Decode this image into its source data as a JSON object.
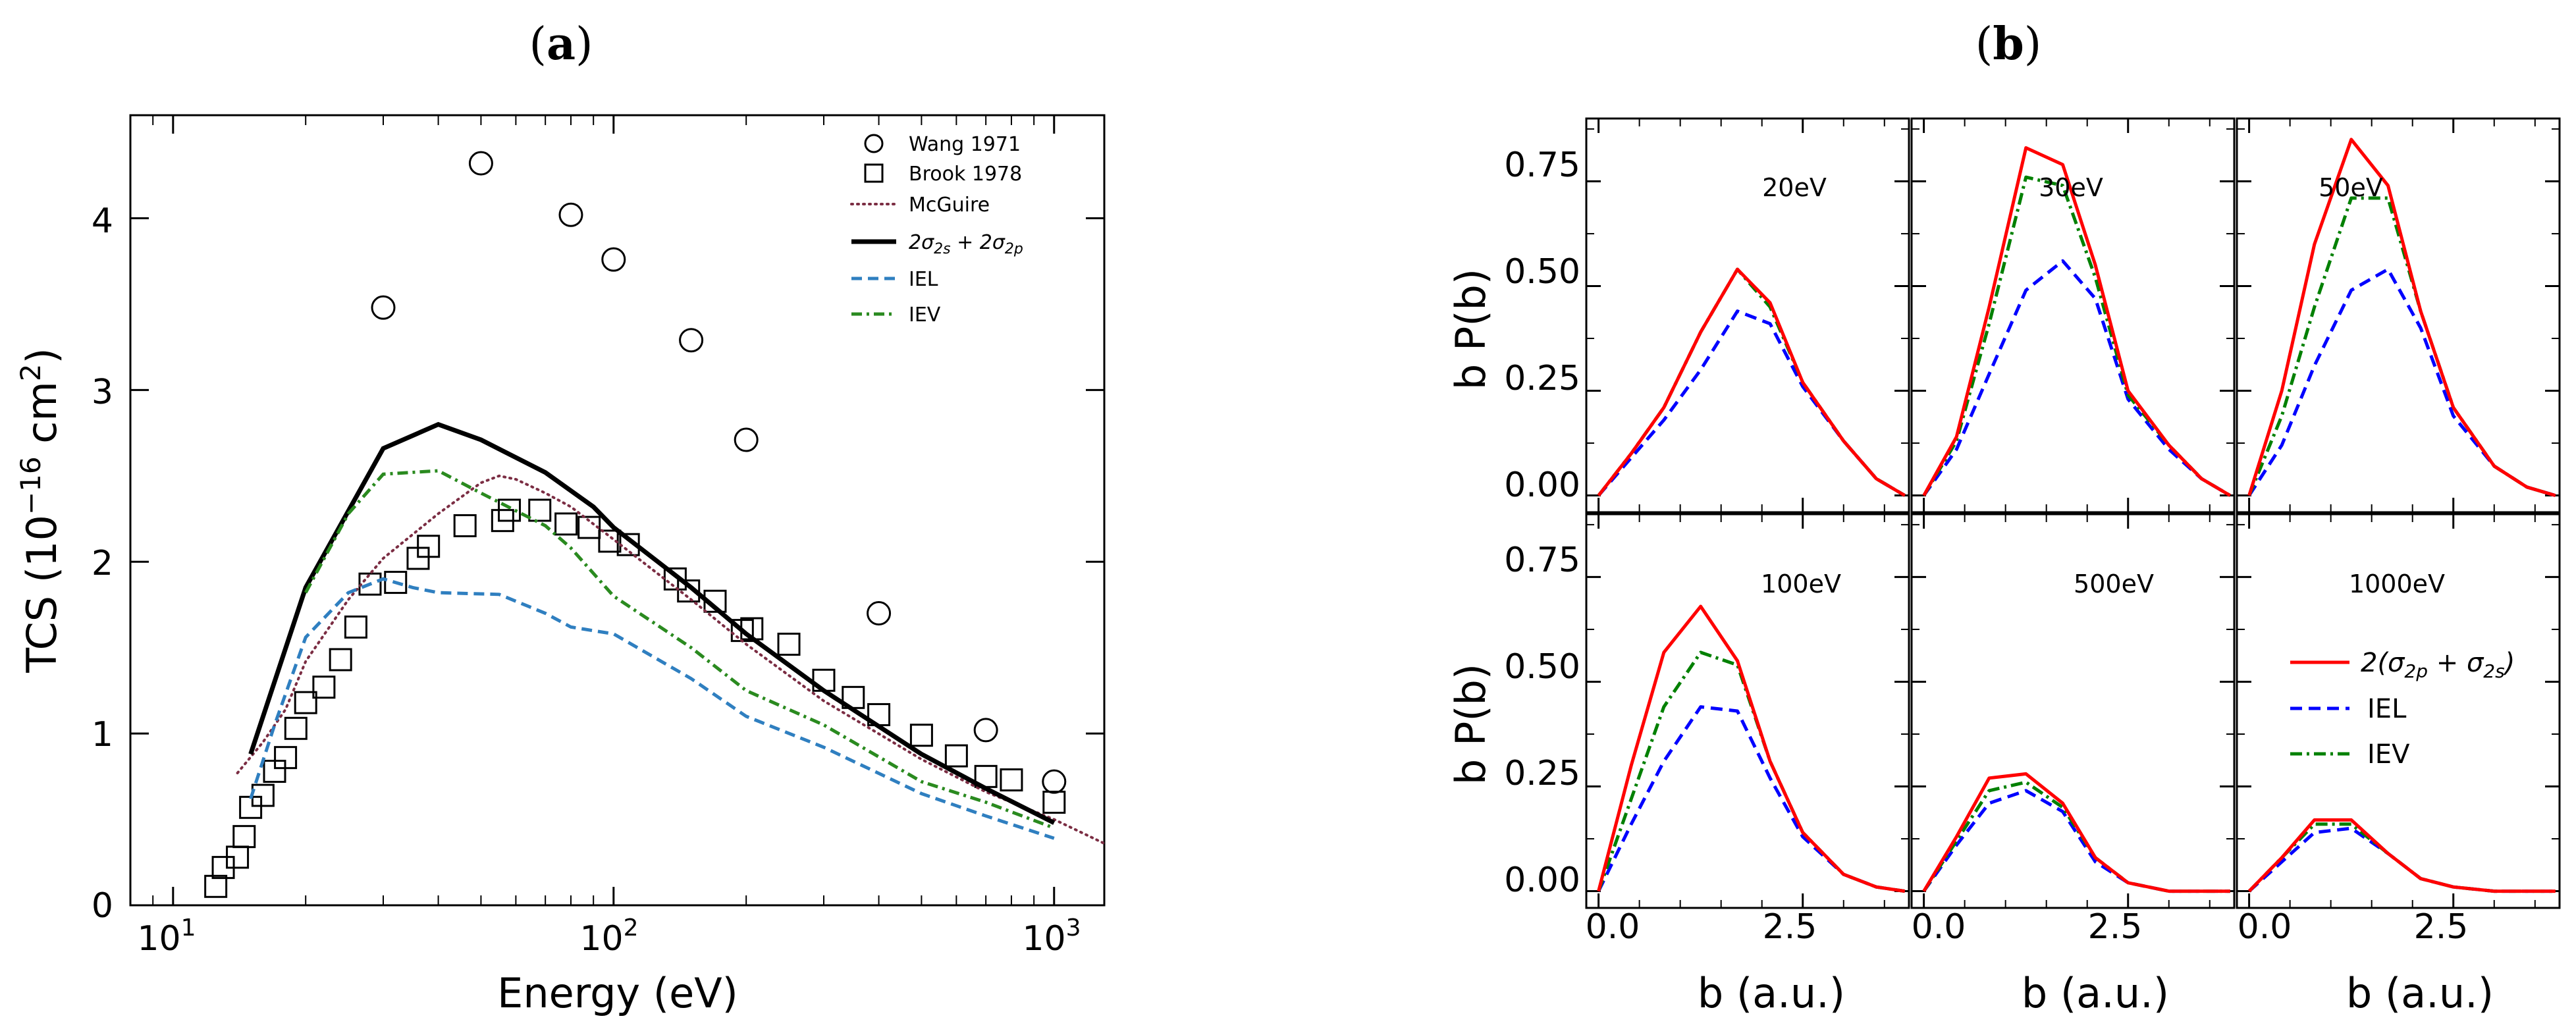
{
  "panel_a_letter": "a",
  "panel_b_letter": "b",
  "chart_data": [
    {
      "id": "a",
      "type": "line",
      "xscale": "log",
      "xlim": [
        8,
        1300
      ],
      "ylim": [
        0,
        4.6
      ],
      "xlabel": "Energy (eV)",
      "ylabel": "TCS (10⁻¹⁶ cm²)",
      "ylabel_parts": {
        "prefix": "TCS (10",
        "exp": "−16",
        "mid": " cm",
        "exp2": "2",
        "suffix": ")"
      },
      "xticks": [
        10,
        100,
        1000
      ],
      "xtick_labels": [
        {
          "base": "10",
          "exp": "1"
        },
        {
          "base": "10",
          "exp": "2"
        },
        {
          "base": "10",
          "exp": "3"
        }
      ],
      "yticks": [
        0,
        1,
        2,
        3,
        4
      ],
      "ytick_labels": [
        "0",
        "1",
        "2",
        "3",
        "4"
      ],
      "legend_position": "top-right",
      "series": [
        {
          "name": "Wang 1971",
          "style": "marker-circle",
          "color": "#000000",
          "x": [
            30,
            50,
            80,
            100,
            150,
            200,
            400,
            700,
            1000
          ],
          "y": [
            3.48,
            4.32,
            4.02,
            3.76,
            3.29,
            2.71,
            1.7,
            1.02,
            0.72
          ]
        },
        {
          "name": "Brook 1978",
          "style": "marker-square",
          "color": "#000000",
          "x": [
            12.5,
            13,
            14,
            14.5,
            15,
            16,
            17,
            18,
            19,
            20,
            22,
            24,
            26,
            28,
            32,
            36,
            38,
            46,
            56,
            58,
            68,
            78,
            88,
            98,
            108,
            138,
            148,
            170,
            196,
            206,
            250,
            300,
            350,
            400,
            500,
            600,
            700,
            800,
            1000
          ],
          "y": [
            0.11,
            0.22,
            0.28,
            0.4,
            0.57,
            0.64,
            0.78,
            0.86,
            1.03,
            1.18,
            1.27,
            1.43,
            1.62,
            1.87,
            1.88,
            2.02,
            2.09,
            2.21,
            2.24,
            2.3,
            2.3,
            2.22,
            2.2,
            2.12,
            2.1,
            1.9,
            1.83,
            1.77,
            1.6,
            1.61,
            1.52,
            1.31,
            1.21,
            1.11,
            0.99,
            0.87,
            0.75,
            0.73,
            0.6
          ]
        },
        {
          "name": "McGuire",
          "style": "dotted",
          "color": "#7b2d43",
          "x": [
            14,
            16,
            18,
            20,
            25,
            30,
            40,
            50,
            55,
            60,
            70,
            80,
            100,
            150,
            200,
            300,
            500,
            700,
            1000,
            1300
          ],
          "y": [
            0.77,
            0.95,
            1.14,
            1.42,
            1.78,
            2.02,
            2.28,
            2.46,
            2.5,
            2.48,
            2.4,
            2.32,
            2.13,
            1.78,
            1.52,
            1.19,
            0.85,
            0.66,
            0.5,
            0.36
          ]
        },
        {
          "name": "2σ₂ₛ+2σ₂ₚ",
          "style": "solid",
          "color": "#000000",
          "x": [
            15,
            20,
            30,
            40,
            50,
            70,
            90,
            100,
            150,
            200,
            300,
            500,
            700,
            1000
          ],
          "y": [
            0.88,
            1.85,
            2.66,
            2.8,
            2.71,
            2.52,
            2.32,
            2.2,
            1.85,
            1.58,
            1.25,
            0.88,
            0.68,
            0.48
          ]
        },
        {
          "name": "IEL",
          "style": "dashed",
          "color": "#2f7fc0",
          "x": [
            15,
            17,
            20,
            25,
            30,
            35,
            40,
            55,
            70,
            80,
            100,
            150,
            200,
            300,
            500,
            700,
            1000
          ],
          "y": [
            0.62,
            1.05,
            1.56,
            1.82,
            1.9,
            1.85,
            1.82,
            1.81,
            1.7,
            1.62,
            1.58,
            1.32,
            1.1,
            0.92,
            0.65,
            0.52,
            0.39
          ]
        },
        {
          "name": "IEV",
          "style": "dashdot",
          "color": "#2a8a1f",
          "x": [
            20,
            25,
            30,
            40,
            50,
            70,
            80,
            100,
            150,
            200,
            300,
            500,
            700,
            1000
          ],
          "y": [
            1.82,
            2.28,
            2.51,
            2.53,
            2.4,
            2.21,
            2.08,
            1.8,
            1.5,
            1.25,
            1.05,
            0.72,
            0.6,
            0.45
          ]
        }
      ],
      "legend_labels": {
        "wang": "Wang 1971",
        "brook": "Brook 1978",
        "mcguire": "McGuire",
        "total": {
          "p1": "2σ",
          "s1": "2s",
          "p2": " + 2σ",
          "s2": "2p"
        },
        "iel": "IEL",
        "iev": "IEV"
      }
    },
    {
      "id": "b",
      "type": "line",
      "layout": "2x3 small multiples",
      "xlabel": "b (a.u.)",
      "ylabel": "b P(b)",
      "xlim": [
        -0.15,
        3.8
      ],
      "ylim": [
        -0.04,
        0.9
      ],
      "xticks": [
        0,
        2.5
      ],
      "xtick_labels": [
        "0.0",
        "2.5"
      ],
      "yticks": [
        0,
        0.25,
        0.5,
        0.75
      ],
      "ytick_labels": [
        "0.00",
        "0.25",
        "0.50",
        "0.75"
      ],
      "legend_panel": "500eV",
      "legend_labels": {
        "total": {
          "p1": "2(σ",
          "s1": "2p",
          "p2": " + σ",
          "s2": "2s",
          "p3": ")"
        },
        "iel": "IEL",
        "iev": "IEV"
      },
      "b_values": [
        0,
        0.4,
        0.8,
        1.25,
        1.7,
        2.1,
        2.5,
        3.0,
        3.4,
        3.75
      ],
      "series_styles": [
        {
          "name": "2(σ₂ₚ+σ₂ₛ)",
          "style": "solid",
          "color": "#ff0000"
        },
        {
          "name": "IEL",
          "style": "dashed",
          "color": "#0000ff"
        },
        {
          "name": "IEV",
          "style": "dashdot",
          "color": "#008000"
        }
      ],
      "panels": [
        {
          "energy": "20eV",
          "total": [
            0,
            0.1,
            0.21,
            0.39,
            0.54,
            0.46,
            0.27,
            0.13,
            0.04,
            0.0
          ],
          "iel": [
            0,
            0.09,
            0.18,
            0.3,
            0.44,
            0.41,
            0.26,
            0.13,
            0.04,
            0.0
          ],
          "iev": [
            0,
            0.1,
            0.21,
            0.39,
            0.54,
            0.45,
            0.27,
            0.13,
            0.04,
            0.0
          ]
        },
        {
          "energy": "30eV",
          "total": [
            0,
            0.14,
            0.45,
            0.83,
            0.79,
            0.55,
            0.25,
            0.12,
            0.04,
            0.0
          ],
          "iel": [
            0,
            0.11,
            0.29,
            0.49,
            0.56,
            0.47,
            0.23,
            0.11,
            0.04,
            0.0
          ],
          "iev": [
            0,
            0.13,
            0.41,
            0.76,
            0.74,
            0.52,
            0.24,
            0.12,
            0.04,
            0.0
          ]
        },
        {
          "energy": "50eV",
          "total": [
            0,
            0.25,
            0.6,
            0.85,
            0.74,
            0.44,
            0.21,
            0.07,
            0.02,
            0.0
          ],
          "iel": [
            0,
            0.12,
            0.31,
            0.49,
            0.54,
            0.4,
            0.19,
            0.07,
            0.02,
            0.0
          ],
          "iev": [
            0,
            0.19,
            0.45,
            0.71,
            0.71,
            0.44,
            0.21,
            0.07,
            0.02,
            0.0
          ]
        },
        {
          "energy": "100eV",
          "total": [
            0,
            0.3,
            0.57,
            0.68,
            0.55,
            0.31,
            0.14,
            0.04,
            0.01,
            0.0
          ],
          "iel": [
            0,
            0.16,
            0.31,
            0.44,
            0.43,
            0.27,
            0.13,
            0.04,
            0.01,
            0.0
          ],
          "iev": [
            0,
            0.22,
            0.44,
            0.57,
            0.54,
            0.31,
            0.14,
            0.04,
            0.01,
            0.0
          ]
        },
        {
          "energy": "500eV",
          "total": [
            0,
            0.13,
            0.27,
            0.28,
            0.21,
            0.08,
            0.02,
            0.0,
            0.0,
            0.0
          ],
          "iel": [
            0,
            0.11,
            0.21,
            0.24,
            0.19,
            0.07,
            0.02,
            0.0,
            0.0,
            0.0
          ],
          "iev": [
            0,
            0.12,
            0.24,
            0.26,
            0.2,
            0.08,
            0.02,
            0.0,
            0.0,
            0.0
          ]
        },
        {
          "energy": "1000eV",
          "total": [
            0,
            0.08,
            0.17,
            0.17,
            0.09,
            0.03,
            0.01,
            0.0,
            0.0,
            0.0
          ],
          "iel": [
            0,
            0.07,
            0.14,
            0.15,
            0.09,
            0.03,
            0.01,
            0.0,
            0.0,
            0.0
          ],
          "iev": [
            0,
            0.08,
            0.16,
            0.16,
            0.09,
            0.03,
            0.01,
            0.0,
            0.0,
            0.0
          ]
        }
      ]
    }
  ]
}
